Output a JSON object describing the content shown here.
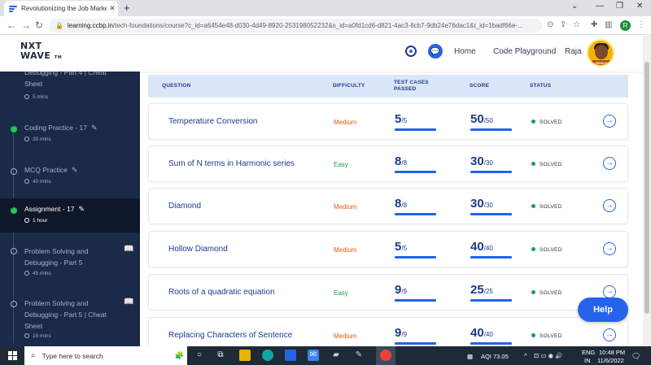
{
  "browser": {
    "tab_title": "Revolutionizing the Job Market |",
    "tab_close": "✕",
    "new_tab": "+",
    "url_host": "learning.ccbp.in",
    "url_path": "/tech-foundations/course?c_id=a6454e48-d030-4d49-8920-253198052232&s_id=a0fd1cd6-d821-4ac3-8cb7-9db24e76dac1&t_id=1badf66e-...",
    "profile_initial": "R"
  },
  "header": {
    "logo_line1": "NXT",
    "logo_line2": "WAVE",
    "logo_tm": "TM",
    "nav": [
      "Home",
      "Code Playground"
    ],
    "user_name": "Raja",
    "avatar_badge": "GENIUS"
  },
  "sidebar": {
    "items": [
      {
        "title": "Debugging - Part 4 | Cheat Sheet",
        "time": "5 mins",
        "status": "none",
        "pencil": false,
        "book": false
      },
      {
        "title": "Coding Practice - 17",
        "time": "30 mins",
        "status": "done",
        "pencil": true,
        "book": false
      },
      {
        "title": "MCQ Practice",
        "time": "40 mins",
        "status": "todo",
        "pencil": true,
        "book": false
      },
      {
        "title": "Assignment - 17",
        "time": "1 hour",
        "status": "done",
        "pencil": true,
        "book": false,
        "active": true
      },
      {
        "title": "Problem Solving and Debugging - Part 5",
        "time": "45 mins",
        "status": "todo",
        "pencil": false,
        "book": true
      },
      {
        "title": "Problem Solving and Debugging - Part 5 | Cheat Sheet",
        "time": "10 mins",
        "status": "todo",
        "pencil": false,
        "book": true
      }
    ]
  },
  "table": {
    "headers": {
      "question": "QUESTION",
      "difficulty": "DIFFICULTY",
      "test_cases": "TEST CASES PASSED",
      "score": "SCORE",
      "status": "STATUS"
    },
    "rows": [
      {
        "question": "Temperature Conversion",
        "difficulty": "Medium",
        "passed": "5",
        "passed_total": "/5",
        "score": "50",
        "score_total": "/50",
        "status": "SOLVED"
      },
      {
        "question": "Sum of N terms in Harmonic series",
        "difficulty": "Easy",
        "passed": "8",
        "passed_total": "/8",
        "score": "30",
        "score_total": "/30",
        "status": "SOLVED"
      },
      {
        "question": "Diamond",
        "difficulty": "Medium",
        "passed": "8",
        "passed_total": "/8",
        "score": "30",
        "score_total": "/30",
        "status": "SOLVED"
      },
      {
        "question": "Hollow Diamond",
        "difficulty": "Medium",
        "passed": "5",
        "passed_total": "/5",
        "score": "40",
        "score_total": "/40",
        "status": "SOLVED"
      },
      {
        "question": "Roots of a quadratic equation",
        "difficulty": "Easy",
        "passed": "9",
        "passed_total": "/9",
        "score": "25",
        "score_total": "/25",
        "status": "SOLVED"
      },
      {
        "question": "Replacing Characters of Sentence",
        "difficulty": "Medium",
        "passed": "9",
        "passed_total": "/9",
        "score": "40",
        "score_total": "/40",
        "status": "SOLVED"
      }
    ]
  },
  "help_label": "Help",
  "taskbar": {
    "search_placeholder": "Type here to search",
    "aqi": "AQI 73.05",
    "lang_line1": "ENG",
    "lang_line2": "IN",
    "time": "10:48 PM",
    "date": "11/6/2022"
  },
  "colors": {
    "sidebar_bg": "#1b2a49",
    "accent": "#2563eb",
    "medium": "#ea580c",
    "easy": "#16a34a",
    "solved": "#16a34a"
  }
}
